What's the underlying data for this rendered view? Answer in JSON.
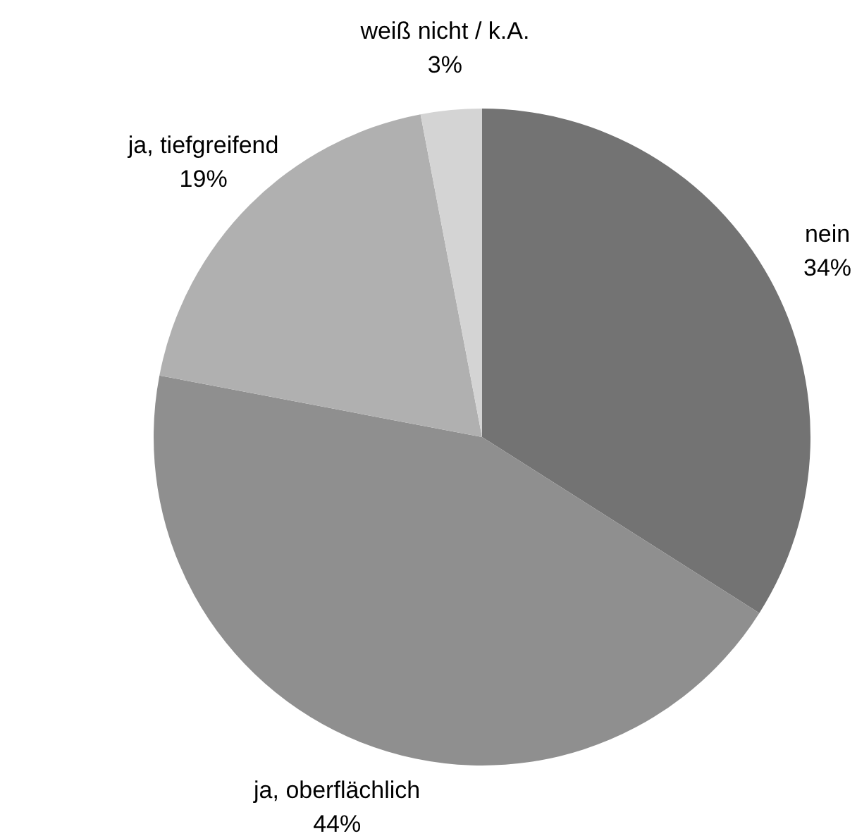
{
  "chart_data": {
    "type": "pie",
    "categories": [
      "nein",
      "ja, oberflächlich",
      "ja, tiefgreifend",
      "weiß nicht / k.A."
    ],
    "values": [
      34,
      44,
      19,
      3
    ],
    "colors": [
      "#737373",
      "#8f8f8f",
      "#b0b0b0",
      "#d4d4d4"
    ],
    "value_labels": [
      "34%",
      "44%",
      "19%",
      "3%"
    ]
  }
}
